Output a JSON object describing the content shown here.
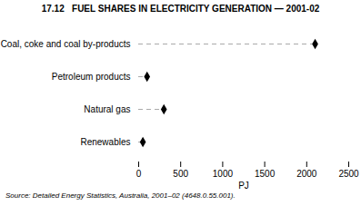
{
  "chart_data": {
    "type": "dot",
    "orientation": "horizontal",
    "title": "17.12   FUEL SHARES IN ELECTRICITY GENERATION — 2001-02",
    "categories": [
      "Coal, coke and coal by-products",
      "Petroleum products",
      "Natural gas",
      "Renewables"
    ],
    "values": [
      2100,
      100,
      300,
      50
    ],
    "xlabel": "PJ",
    "xlim": [
      0,
      2500
    ],
    "xticks": [
      0,
      500,
      1000,
      1500,
      2000,
      2500
    ],
    "source": "Source: Detailed Energy Statistics, Australia, 2001–02 (4648.0.55.001).",
    "color": "#000000",
    "marker": "diamond",
    "line_style": "dashed",
    "grid": false
  }
}
